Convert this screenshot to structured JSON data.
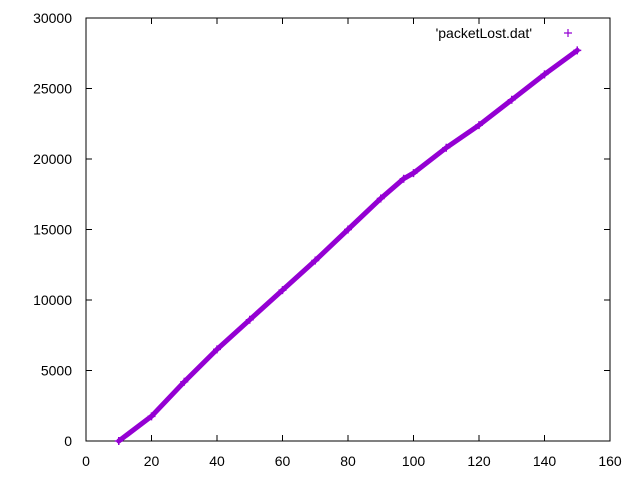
{
  "chart_data": {
    "type": "scatter",
    "title": "",
    "xlabel": "",
    "ylabel": "",
    "xlim": [
      0,
      160
    ],
    "ylim": [
      0,
      30000
    ],
    "x_ticks": [
      "0",
      "20",
      "40",
      "60",
      "80",
      "100",
      "120",
      "140",
      "160"
    ],
    "y_ticks": [
      "0",
      "5000",
      "10000",
      "15000",
      "20000",
      "25000",
      "30000"
    ],
    "grid": false,
    "legend_position": "top-right",
    "marker": "+",
    "series": [
      {
        "name": "'packetLost.dat'",
        "color": "#9400d3",
        "points": [
          [
            10,
            0
          ],
          [
            20,
            1750
          ],
          [
            30,
            4200
          ],
          [
            40,
            6500
          ],
          [
            50,
            8600
          ],
          [
            60,
            10700
          ],
          [
            70,
            12800
          ],
          [
            80,
            15000
          ],
          [
            90,
            17200
          ],
          [
            97,
            18600
          ],
          [
            100,
            19000
          ],
          [
            110,
            20800
          ],
          [
            120,
            22400
          ],
          [
            130,
            24200
          ],
          [
            140,
            26000
          ],
          [
            150,
            27700
          ]
        ]
      }
    ]
  }
}
